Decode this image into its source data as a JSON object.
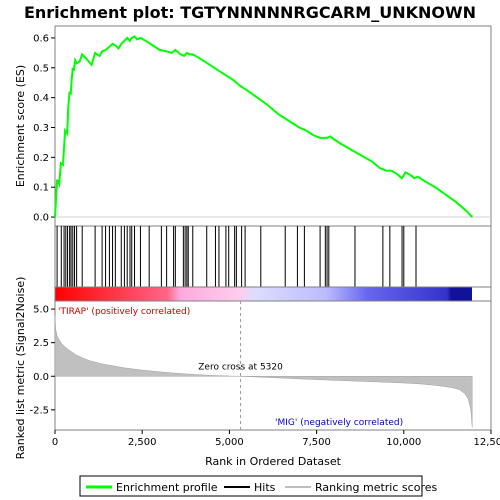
{
  "chart_data": {
    "type": "line",
    "title": "Enrichment plot: TGTYNNNNNRGCARM_UNKNOWN",
    "top_panel": {
      "ylabel": "Enrichment score (ES)",
      "ylim": [
        -0.03,
        0.64
      ],
      "yticks": [
        "0.0",
        "0.1",
        "0.2",
        "0.3",
        "0.4",
        "0.5",
        "0.6"
      ],
      "ytick_values": [
        0.0,
        0.1,
        0.2,
        0.3,
        0.4,
        0.5,
        0.6
      ],
      "series": [
        {
          "name": "Enrichment profile",
          "color": "#00ff00",
          "x": [
            0,
            60,
            120,
            170,
            230,
            290,
            350,
            380,
            420,
            450,
            480,
            510,
            540,
            580,
            620,
            700,
            780,
            900,
            1050,
            1150,
            1280,
            1350,
            1450,
            1560,
            1650,
            1730,
            1820,
            1900,
            1990,
            2070,
            2150,
            2200,
            2280,
            2350,
            2450,
            2600,
            2800,
            3000,
            3200,
            3350,
            3450,
            3600,
            3700,
            3780,
            3850,
            3950,
            4100,
            4300,
            4500,
            4700,
            4900,
            5100,
            5300,
            5500,
            5800,
            6100,
            6400,
            6600,
            6800,
            7000,
            7200,
            7400,
            7600,
            7800,
            7900,
            8000,
            8200,
            8500,
            8800,
            9100,
            9300,
            9500,
            9650,
            9800,
            9950,
            10050,
            10200,
            10300,
            10400,
            10600,
            10900,
            11200,
            11500,
            11800,
            11960
          ],
          "y": [
            0.0,
            0.125,
            0.11,
            0.18,
            0.175,
            0.29,
            0.28,
            0.37,
            0.42,
            0.41,
            0.46,
            0.5,
            0.49,
            0.525,
            0.515,
            0.52,
            0.545,
            0.53,
            0.51,
            0.55,
            0.54,
            0.555,
            0.56,
            0.57,
            0.58,
            0.575,
            0.565,
            0.58,
            0.59,
            0.6,
            0.59,
            0.6,
            0.605,
            0.595,
            0.6,
            0.59,
            0.575,
            0.56,
            0.555,
            0.55,
            0.56,
            0.545,
            0.54,
            0.55,
            0.545,
            0.545,
            0.535,
            0.52,
            0.505,
            0.49,
            0.475,
            0.46,
            0.44,
            0.425,
            0.4,
            0.375,
            0.345,
            0.33,
            0.315,
            0.3,
            0.29,
            0.275,
            0.265,
            0.265,
            0.27,
            0.26,
            0.245,
            0.225,
            0.205,
            0.185,
            0.165,
            0.155,
            0.155,
            0.145,
            0.13,
            0.15,
            0.14,
            0.13,
            0.135,
            0.12,
            0.1,
            0.075,
            0.05,
            0.02,
            0.0
          ]
        }
      ]
    },
    "hits": [
      60,
      180,
      260,
      310,
      360,
      420,
      460,
      510,
      560,
      620,
      780,
      1150,
      1350,
      1450,
      1560,
      1650,
      1730,
      1900,
      1990,
      2070,
      2150,
      2200,
      2280,
      2450,
      2700,
      3050,
      3200,
      3400,
      3450,
      3680,
      3730,
      3780,
      3820,
      3950,
      4350,
      4600,
      4700,
      4900,
      4980,
      5150,
      5200,
      5350,
      5450,
      5900,
      6600,
      6950,
      7150,
      7600,
      7750,
      7800,
      7850,
      8600,
      9400,
      9600,
      9950,
      10000,
      10350
    ],
    "gradient_bar": {
      "colors": [
        "#ff0000",
        "#ff99cc",
        "#ccccff",
        "#3333cc"
      ]
    },
    "bottom_panel": {
      "ylabel": "Ranked list metric (Signal2Noise)",
      "ylim": [
        -4.0,
        5.6
      ],
      "yticks": [
        "5.0",
        "2.5",
        "0.0",
        "-2.5"
      ],
      "ytick_values": [
        5.0,
        2.5,
        0.0,
        -2.5
      ],
      "zero_cross_label": "Zero cross at 5320",
      "zero_cross": 5320,
      "pos_label": "'TIRAP' (positively correlated)",
      "neg_label": "'MIG' (negatively correlated)",
      "metric_x": [
        0,
        20,
        60,
        120,
        200,
        300,
        400,
        600,
        800,
        1000,
        1300,
        1600,
        2000,
        2500,
        3000,
        3500,
        4000,
        4500,
        5000,
        5320,
        6000,
        7000,
        8000,
        9000,
        10000,
        10500,
        11000,
        11400,
        11600,
        11750,
        11850,
        11920,
        11960
      ],
      "metric_y": [
        4.5,
        3.5,
        3.0,
        2.7,
        2.4,
        2.15,
        1.95,
        1.6,
        1.35,
        1.15,
        0.95,
        0.8,
        0.62,
        0.46,
        0.33,
        0.22,
        0.13,
        0.06,
        0.02,
        0.0,
        -0.08,
        -0.2,
        -0.3,
        -0.4,
        -0.5,
        -0.58,
        -0.7,
        -0.85,
        -1.0,
        -1.3,
        -1.7,
        -2.5,
        -3.8
      ]
    },
    "xlabel": "Rank in Ordered Dataset",
    "xlim": [
      0,
      12500
    ],
    "xticks": [
      "0",
      "2,500",
      "5,000",
      "7,500",
      "10,000",
      "12,500"
    ],
    "xtick_values": [
      0,
      2500,
      5000,
      7500,
      10000,
      12500
    ],
    "legend": {
      "placement": "bottom",
      "items": [
        {
          "label": "Enrichment profile",
          "color": "#00ff00"
        },
        {
          "label": "Hits",
          "color": "#000000"
        },
        {
          "label": "Ranking metric scores",
          "color": "#c0c0c0"
        }
      ]
    }
  }
}
